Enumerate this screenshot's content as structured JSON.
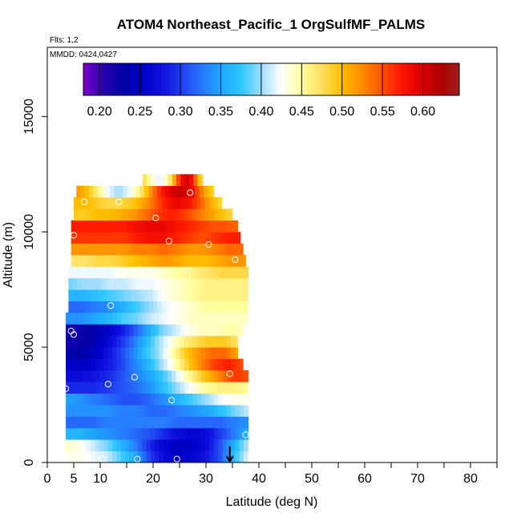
{
  "chart_data": {
    "type": "heatmap",
    "title": "ATOM4 Northeast_Pacific_1 OrgSulfMF_PALMS",
    "flights_label": "Flts: 1,2",
    "date_label": "MMDD: 0424,0427",
    "xlabel": "Latitude (deg N)",
    "ylabel": "Altitude (m)",
    "xlim": [
      0,
      85
    ],
    "ylim": [
      0,
      18000
    ],
    "x_ticks": [
      0,
      5,
      10,
      20,
      30,
      40,
      50,
      60,
      70,
      80
    ],
    "y_ticks": [
      0,
      5000,
      10000,
      15000
    ],
    "colorbar": {
      "min": 0.18,
      "max": 0.645,
      "ticks": [
        0.2,
        0.25,
        0.3,
        0.35,
        0.4,
        0.45,
        0.5,
        0.55,
        0.6
      ],
      "tick_labels": [
        "0.20",
        "0.25",
        "0.30",
        "0.35",
        "0.40",
        "0.45",
        "0.50",
        "0.55",
        "0.60"
      ],
      "placement": "top",
      "colors": [
        "#8000d0",
        "#2a00b0",
        "#0000a8",
        "#0000c8",
        "#1010e0",
        "#2040f0",
        "#2878ff",
        "#1ea8ff",
        "#30c8ff",
        "#a0dcff",
        "#ffffff",
        "#ffffa0",
        "#ffe060",
        "#ffc000",
        "#ff9000",
        "#ff5800",
        "#ff1800",
        "#e00000",
        "#b00000",
        "#a02020"
      ]
    },
    "bands": [
      {
        "alt": 0,
        "values": [
          0.43,
          0.43,
          0.42,
          0.41,
          0.38,
          0.35,
          0.3,
          0.27,
          0.25,
          0.26,
          0.28,
          0.31,
          0.37,
          0.42
        ]
      },
      {
        "alt": 500,
        "values": [
          0.44,
          0.43,
          0.41,
          0.39,
          0.36,
          0.33,
          0.29,
          0.26,
          0.25,
          0.25,
          0.27,
          0.31,
          0.36,
          0.41
        ]
      },
      {
        "alt": 1000,
        "values": [
          0.36,
          0.36,
          0.35,
          0.34,
          0.33,
          0.32,
          0.31,
          0.29,
          0.27,
          0.26,
          0.27,
          0.3,
          0.33,
          0.36
        ]
      },
      {
        "alt": 1500,
        "values": [
          0.32,
          0.32,
          0.32,
          0.33,
          0.33,
          0.33,
          0.33,
          0.33,
          0.32,
          0.32,
          0.32,
          0.32,
          0.33,
          0.34
        ]
      },
      {
        "alt": 2000,
        "values": [
          0.34,
          0.34,
          0.34,
          0.34,
          0.33,
          0.33,
          0.32,
          0.32,
          0.33,
          0.34,
          0.35,
          0.37,
          0.39,
          0.41
        ]
      },
      {
        "alt": 2500,
        "values": [
          0.35,
          0.34,
          0.33,
          0.32,
          0.31,
          0.31,
          0.32,
          0.34,
          0.36,
          0.38,
          0.4,
          0.42,
          0.43,
          0.43
        ]
      },
      {
        "alt": 3000,
        "values": [
          0.29,
          0.29,
          0.29,
          0.3,
          0.31,
          0.32,
          0.34,
          0.37,
          0.4,
          0.43,
          0.45,
          0.46,
          0.46,
          0.45
        ]
      },
      {
        "alt": 3500,
        "values": [
          0.27,
          0.27,
          0.28,
          0.29,
          0.31,
          0.33,
          0.35,
          0.38,
          0.42,
          0.46,
          0.5,
          0.53,
          0.56,
          0.55
        ]
      },
      {
        "alt": 4000,
        "values": [
          0.25,
          0.25,
          0.26,
          0.28,
          0.3,
          0.33,
          0.36,
          0.4,
          0.44,
          0.49,
          0.53,
          0.56,
          0.57,
          0.55
        ]
      },
      {
        "alt": 4500,
        "values": [
          0.23,
          0.23,
          0.24,
          0.27,
          0.3,
          0.33,
          0.37,
          0.4,
          0.44,
          0.49,
          0.52,
          0.54,
          0.54,
          0.51
        ]
      },
      {
        "alt": 5000,
        "values": [
          0.22,
          0.22,
          0.23,
          0.26,
          0.29,
          0.32,
          0.36,
          0.4,
          0.43,
          0.46,
          0.48,
          0.49,
          0.49,
          0.47
        ]
      },
      {
        "alt": 5500,
        "values": [
          0.22,
          0.22,
          0.23,
          0.25,
          0.28,
          0.31,
          0.35,
          0.39,
          0.41,
          0.43,
          0.44,
          0.44,
          0.45,
          0.44
        ]
      },
      {
        "alt": 6000,
        "values": [
          0.34,
          0.34,
          0.35,
          0.36,
          0.38,
          0.39,
          0.41,
          0.42,
          0.43,
          0.44,
          0.44,
          0.44,
          0.44,
          0.44
        ]
      },
      {
        "alt": 6500,
        "values": [
          0.32,
          0.32,
          0.33,
          0.34,
          0.36,
          0.38,
          0.4,
          0.42,
          0.43,
          0.44,
          0.45,
          0.45,
          0.45,
          0.45
        ]
      },
      {
        "alt": 7000,
        "values": [
          0.36,
          0.36,
          0.37,
          0.38,
          0.39,
          0.4,
          0.41,
          0.43,
          0.44,
          0.45,
          0.46,
          0.46,
          0.46,
          0.46
        ]
      },
      {
        "alt": 7500,
        "values": [
          0.39,
          0.4,
          0.4,
          0.41,
          0.41,
          0.42,
          0.42,
          0.43,
          0.44,
          0.45,
          0.46,
          0.46,
          0.46,
          0.46
        ]
      },
      {
        "alt": 8000,
        "values": [
          0.42,
          0.42,
          0.42,
          0.42,
          0.43,
          0.43,
          0.43,
          0.44,
          0.45,
          0.46,
          0.47,
          0.48,
          0.48,
          0.48
        ]
      },
      {
        "alt": 8500,
        "values": [
          0.47,
          0.47,
          0.48,
          0.48,
          0.49,
          0.5,
          0.51,
          0.52,
          0.51,
          0.5,
          0.5,
          0.51,
          0.52,
          0.52
        ]
      },
      {
        "alt": 9000,
        "values": [
          0.52,
          0.52,
          0.52,
          0.52,
          0.52,
          0.53,
          0.53,
          0.54,
          0.53,
          0.52,
          0.52,
          0.53,
          0.54,
          0.54
        ]
      },
      {
        "alt": 9500,
        "values": [
          0.56,
          0.56,
          0.56,
          0.56,
          0.56,
          0.57,
          0.58,
          0.58,
          0.57,
          0.56,
          0.55,
          0.56,
          0.57,
          0.57
        ]
      },
      {
        "alt": 10000,
        "values": [
          0.57,
          0.57,
          0.57,
          0.57,
          0.57,
          0.58,
          0.59,
          0.59,
          0.58,
          0.57,
          0.56,
          0.55,
          0.55,
          0.54
        ]
      },
      {
        "alt": 10500,
        "values": [
          0.49,
          0.49,
          0.5,
          0.5,
          0.51,
          0.52,
          0.54,
          0.56,
          0.57,
          0.56,
          0.54,
          0.52,
          0.5,
          0.48
        ]
      },
      {
        "alt": 11000,
        "values": [
          0.5,
          0.5,
          0.49,
          0.48,
          0.48,
          0.49,
          0.51,
          0.54,
          0.57,
          0.59,
          0.58,
          0.55,
          0.51,
          0.48
        ]
      },
      {
        "alt": 11500,
        "values": [
          0.52,
          0.5,
          0.46,
          0.42,
          0.4,
          0.42,
          0.46,
          0.52,
          0.57,
          0.6,
          0.61,
          0.58,
          0.52,
          0.48
        ]
      },
      {
        "alt": 12000,
        "values": [
          0.48,
          0.46,
          0.44,
          0.42,
          0.42,
          0.44,
          0.47,
          0.52,
          0.57,
          0.6,
          0.6,
          0.56,
          0.5,
          0.47
        ]
      }
    ],
    "band_extents": [
      [
        3.5,
        38.0
      ],
      [
        3.5,
        38.0
      ],
      [
        3.5,
        38.0
      ],
      [
        3.5,
        38.0
      ],
      [
        3.5,
        38.0
      ],
      [
        3.5,
        38.0
      ],
      [
        3.5,
        38.0
      ],
      [
        3.5,
        38.0
      ],
      [
        3.5,
        37.0
      ],
      [
        3.5,
        36.0
      ],
      [
        3.5,
        36.0
      ],
      [
        3.5,
        37.0
      ],
      [
        3.5,
        38.0
      ],
      [
        4.0,
        38.0
      ],
      [
        4.0,
        38.0
      ],
      [
        4.0,
        38.0
      ],
      [
        4.0,
        38.0
      ],
      [
        4.5,
        37.5
      ],
      [
        4.5,
        37.0
      ],
      [
        4.5,
        36.5
      ],
      [
        4.5,
        36.0
      ],
      [
        5.0,
        35.0
      ],
      [
        5.0,
        33.0
      ],
      [
        5.5,
        31.5
      ],
      [
        18.0,
        29.5
      ]
    ],
    "observation_points": [
      {
        "lat": 3.5,
        "alt": 3200
      },
      {
        "lat": 4.5,
        "alt": 5700
      },
      {
        "lat": 5.0,
        "alt": 5550
      },
      {
        "lat": 5.0,
        "alt": 9850
      },
      {
        "lat": 7.0,
        "alt": 11300
      },
      {
        "lat": 10.5,
        "alt": 150
      },
      {
        "lat": 11.5,
        "alt": 3400
      },
      {
        "lat": 12.0,
        "alt": 6800
      },
      {
        "lat": 13.5,
        "alt": 11300
      },
      {
        "lat": 16.5,
        "alt": 3700
      },
      {
        "lat": 17.0,
        "alt": 150
      },
      {
        "lat": 20.5,
        "alt": 10600
      },
      {
        "lat": 22.5,
        "alt": 6350
      },
      {
        "lat": 23.0,
        "alt": 9600
      },
      {
        "lat": 23.5,
        "alt": 2700
      },
      {
        "lat": 24.5,
        "alt": 150
      },
      {
        "lat": 26.5,
        "alt": 8350
      },
      {
        "lat": 27.0,
        "alt": 11700
      },
      {
        "lat": 30.5,
        "alt": 9450
      },
      {
        "lat": 34.5,
        "alt": 3850
      },
      {
        "lat": 35.5,
        "alt": 8800
      },
      {
        "lat": 37.5,
        "alt": 1200
      }
    ],
    "arrow": {
      "lat": 34.5,
      "alt_top": 700,
      "alt_bottom": 0
    }
  }
}
